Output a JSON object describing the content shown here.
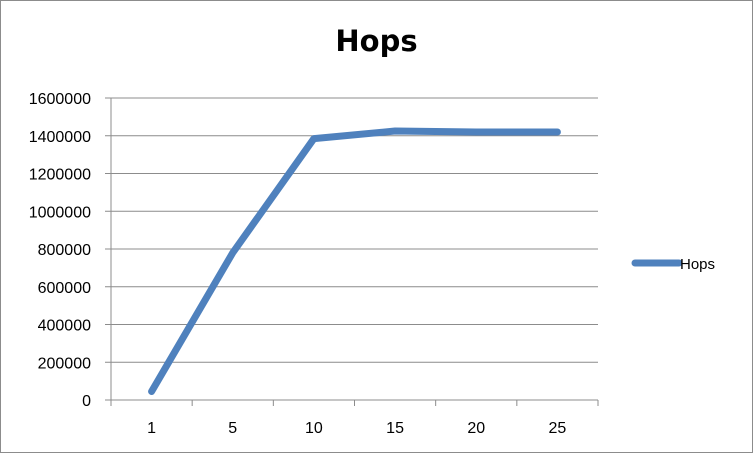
{
  "chart_data": {
    "type": "line",
    "title": "Hops",
    "xlabel": "",
    "ylabel": "",
    "categories": [
      "1",
      "5",
      "10",
      "15",
      "20",
      "25"
    ],
    "series": [
      {
        "name": "Hops",
        "values": [
          45000,
          780000,
          1385000,
          1425000,
          1420000,
          1420000
        ],
        "color": "#4f81bd"
      }
    ],
    "ylim": [
      0,
      1600000
    ],
    "yticks": [
      0,
      200000,
      400000,
      600000,
      800000,
      1000000,
      1200000,
      1400000,
      1600000
    ],
    "grid": true,
    "legend": "right"
  }
}
